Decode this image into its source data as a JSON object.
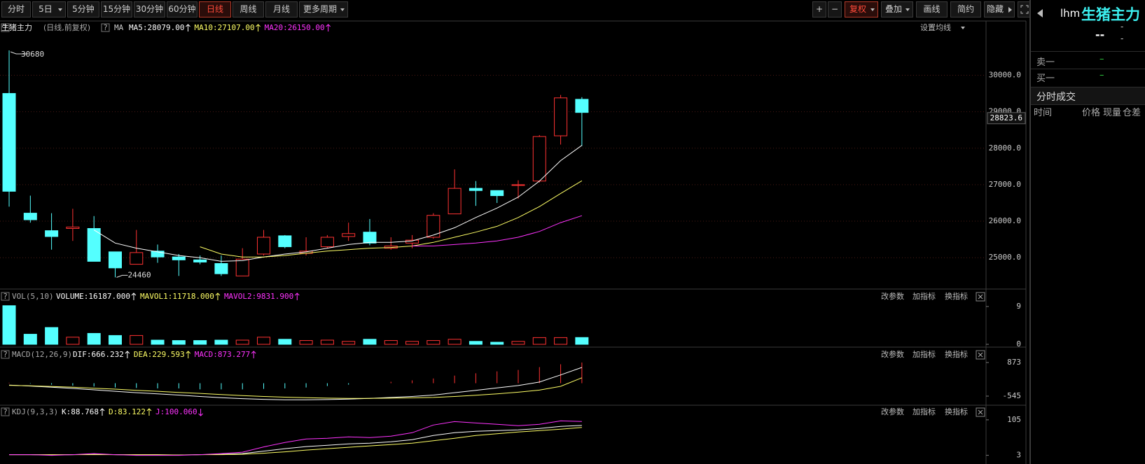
{
  "toolbar": {
    "left": [
      "分时",
      "5日",
      "5分钟",
      "15分钟",
      "30分钟",
      "60分钟",
      "日线",
      "周线",
      "月线",
      "更多周期"
    ],
    "right": [
      "+",
      "−",
      "复权",
      "叠加",
      "画线",
      "简约",
      "隐藏"
    ]
  },
  "panel_buttons": [
    "改参数",
    "加指标",
    "换指标"
  ],
  "help_icon": "?",
  "chart_data": [
    {
      "type": "candlestick",
      "title": "生猪主力",
      "subtitle": "(日线,前复权)",
      "legend_label": "MA",
      "settings_label": "设置均线",
      "up_color": "#ff3232",
      "down_color": "#54ffff",
      "open": [
        29500,
        26220,
        25740,
        25800,
        25800,
        25160,
        24820,
        25180,
        25020,
        24940,
        24840,
        24500,
        25100,
        25600,
        25120,
        25300,
        25580,
        25700,
        25260,
        25400,
        25560,
        26200,
        26900,
        26840,
        26980,
        27100,
        28340,
        29340
      ],
      "high": [
        30680,
        26700,
        26220,
        26340,
        26140,
        25160,
        25760,
        25360,
        25100,
        25060,
        25060,
        25260,
        25760,
        25620,
        25560,
        25620,
        25960,
        26060,
        25560,
        25620,
        26220,
        27420,
        27100,
        26840,
        27120,
        28360,
        29460,
        29400
      ],
      "low": [
        26400,
        25960,
        25220,
        25460,
        24900,
        24460,
        24820,
        24860,
        24500,
        24820,
        24500,
        24500,
        25060,
        25260,
        25060,
        25260,
        25460,
        25340,
        25220,
        25260,
        25520,
        26200,
        26420,
        26500,
        26620,
        27060,
        28100,
        28060
      ],
      "close": [
        26820,
        26040,
        25580,
        25840,
        24900,
        24720,
        25140,
        25020,
        24940,
        24880,
        24560,
        24960,
        25560,
        25300,
        25180,
        25560,
        25660,
        25400,
        25320,
        25480,
        26160,
        26900,
        26840,
        26700,
        27000,
        28320,
        29380,
        28980
      ],
      "last_price": 28823.6,
      "series": [
        {
          "name": "MA5:28079.00",
          "color": "#ffffff",
          "arrow": "up",
          "values": [
            null,
            null,
            null,
            null,
            25760,
            25400,
            25260,
            25160,
            25060,
            25000,
            24900,
            24920,
            25020,
            25100,
            25160,
            25260,
            25360,
            25420,
            25420,
            25460,
            25620,
            25820,
            26100,
            26360,
            26660,
            27100,
            27660,
            28079
          ]
        },
        {
          "name": "MA10:27107.00",
          "color": "#ffff66",
          "arrow": "up",
          "values": [
            null,
            null,
            null,
            null,
            null,
            null,
            null,
            null,
            null,
            25300,
            25100,
            25020,
            25020,
            25060,
            25120,
            25180,
            25220,
            25260,
            25280,
            25320,
            25420,
            25560,
            25700,
            25860,
            26100,
            26400,
            26760,
            27107
          ]
        },
        {
          "name": "MA20:26150.00",
          "color": "#ff33ff",
          "arrow": "up",
          "values": [
            null,
            null,
            null,
            null,
            null,
            null,
            null,
            null,
            null,
            null,
            null,
            null,
            null,
            null,
            null,
            null,
            null,
            null,
            null,
            25320,
            25320,
            25360,
            25400,
            25460,
            25560,
            25720,
            25960,
            26150
          ]
        }
      ],
      "ylim": [
        24160,
        31160
      ],
      "yticks": [
        {
          "value": 25000,
          "label": "25000.0"
        },
        {
          "value": 26000,
          "label": "26000.0"
        },
        {
          "value": 27000,
          "label": "27000.0"
        },
        {
          "value": 28000,
          "label": "28000.0"
        },
        {
          "value": 29000,
          "label": "29000.0"
        },
        {
          "value": 30000,
          "label": "30000.0"
        }
      ],
      "grid": true
    },
    {
      "type": "bar",
      "title": "VOL(5,10)",
      "legend": [
        {
          "name": "VOLUME:16187.000",
          "color": "#ffffff",
          "arrow": "up"
        },
        {
          "name": "MAVOL1:11718.000",
          "color": "#ffff66",
          "arrow": "up"
        },
        {
          "name": "MAVOL2:9831.900",
          "color": "#ff33ff",
          "arrow": "up"
        }
      ],
      "values": [
        9.2,
        2.4,
        4.0,
        1.7,
        2.6,
        2.1,
        2.1,
        1.0,
        0.9,
        0.9,
        1.0,
        1.0,
        1.7,
        1.2,
        0.9,
        1.0,
        0.7,
        1.2,
        0.9,
        0.7,
        0.9,
        1.2,
        0.7,
        0.5,
        0.7,
        1.6,
        1.6,
        1.6187
      ],
      "ylim": [
        0,
        10.33
      ],
      "yticks": [
        0,
        9
      ]
    },
    {
      "type": "macd",
      "title": "MACD(12,26,9)",
      "values": [
        20,
        -20,
        -60,
        -100,
        -140,
        -180,
        -200,
        -220,
        -220,
        -260,
        -260,
        -260,
        -240,
        -220,
        -180,
        -120,
        -60,
        0,
        60,
        120,
        200,
        320,
        420,
        500,
        560,
        680,
        800,
        873.277
      ],
      "hist_label": {
        "name": "MACD:873.277",
        "color": "#ff33ff",
        "arrow": "up"
      },
      "series": [
        {
          "name": "DIF:666.232",
          "color": "#ffffff",
          "arrow": "up",
          "values": [
            -80,
            -120,
            -170,
            -220,
            -280,
            -340,
            -400,
            -450,
            -500,
            -560,
            -610,
            -650,
            -680,
            -700,
            -700,
            -690,
            -670,
            -640,
            -600,
            -560,
            -500,
            -400,
            -300,
            -200,
            -100,
            50,
            350,
            666.232
          ]
        },
        {
          "name": "DEA:229.593",
          "color": "#ffff66",
          "arrow": "up",
          "values": [
            -90,
            -110,
            -140,
            -170,
            -210,
            -250,
            -300,
            -340,
            -390,
            -430,
            -480,
            -520,
            -560,
            -590,
            -610,
            -630,
            -640,
            -640,
            -630,
            -620,
            -600,
            -560,
            -510,
            -450,
            -380,
            -290,
            -130,
            229.593
          ]
        }
      ],
      "ylim": [
        -811,
        1346
      ],
      "yticks": [
        873,
        -545
      ]
    },
    {
      "type": "line",
      "title": "KDJ(9,3,3)",
      "series": [
        {
          "name": "K:88.768",
          "color": "#ffffff",
          "arrow": "up",
          "values": [
            5,
            5,
            4,
            5,
            6,
            5,
            4,
            4,
            4,
            5,
            6,
            8,
            15,
            22,
            28,
            32,
            36,
            38,
            42,
            48,
            60,
            68,
            72,
            74,
            76,
            80,
            86,
            88.768
          ]
        },
        {
          "name": "D:83.122",
          "color": "#ffff66",
          "arrow": "up",
          "values": [
            5,
            5,
            5,
            5,
            5,
            5,
            5,
            5,
            4,
            5,
            5,
            6,
            9,
            13,
            18,
            22,
            26,
            30,
            34,
            38,
            45,
            52,
            60,
            65,
            70,
            74,
            78,
            83.122
          ]
        },
        {
          "name": "J:100.060",
          "color": "#ff33ff",
          "arrow": "down",
          "values": [
            5,
            5,
            3,
            5,
            8,
            5,
            3,
            3,
            3,
            5,
            8,
            12,
            27,
            40,
            50,
            52,
            56,
            54,
            58,
            68,
            90,
            100,
            96,
            92,
            88,
            92,
            102,
            100.06
          ]
        }
      ],
      "ylim": [
        -16,
        141
      ],
      "yticks": [
        105,
        3
      ]
    }
  ],
  "quote_panel": {
    "code": "lhm",
    "name": "生猪主力",
    "price": "--",
    "change": "-",
    "change_pct": "-",
    "sell1": {
      "label": "卖一",
      "value": "–"
    },
    "buy1": {
      "label": "买一",
      "value": "–"
    },
    "trades_title": "分时成交",
    "columns": [
      "时间",
      "价格",
      "现量",
      "仓差"
    ]
  }
}
